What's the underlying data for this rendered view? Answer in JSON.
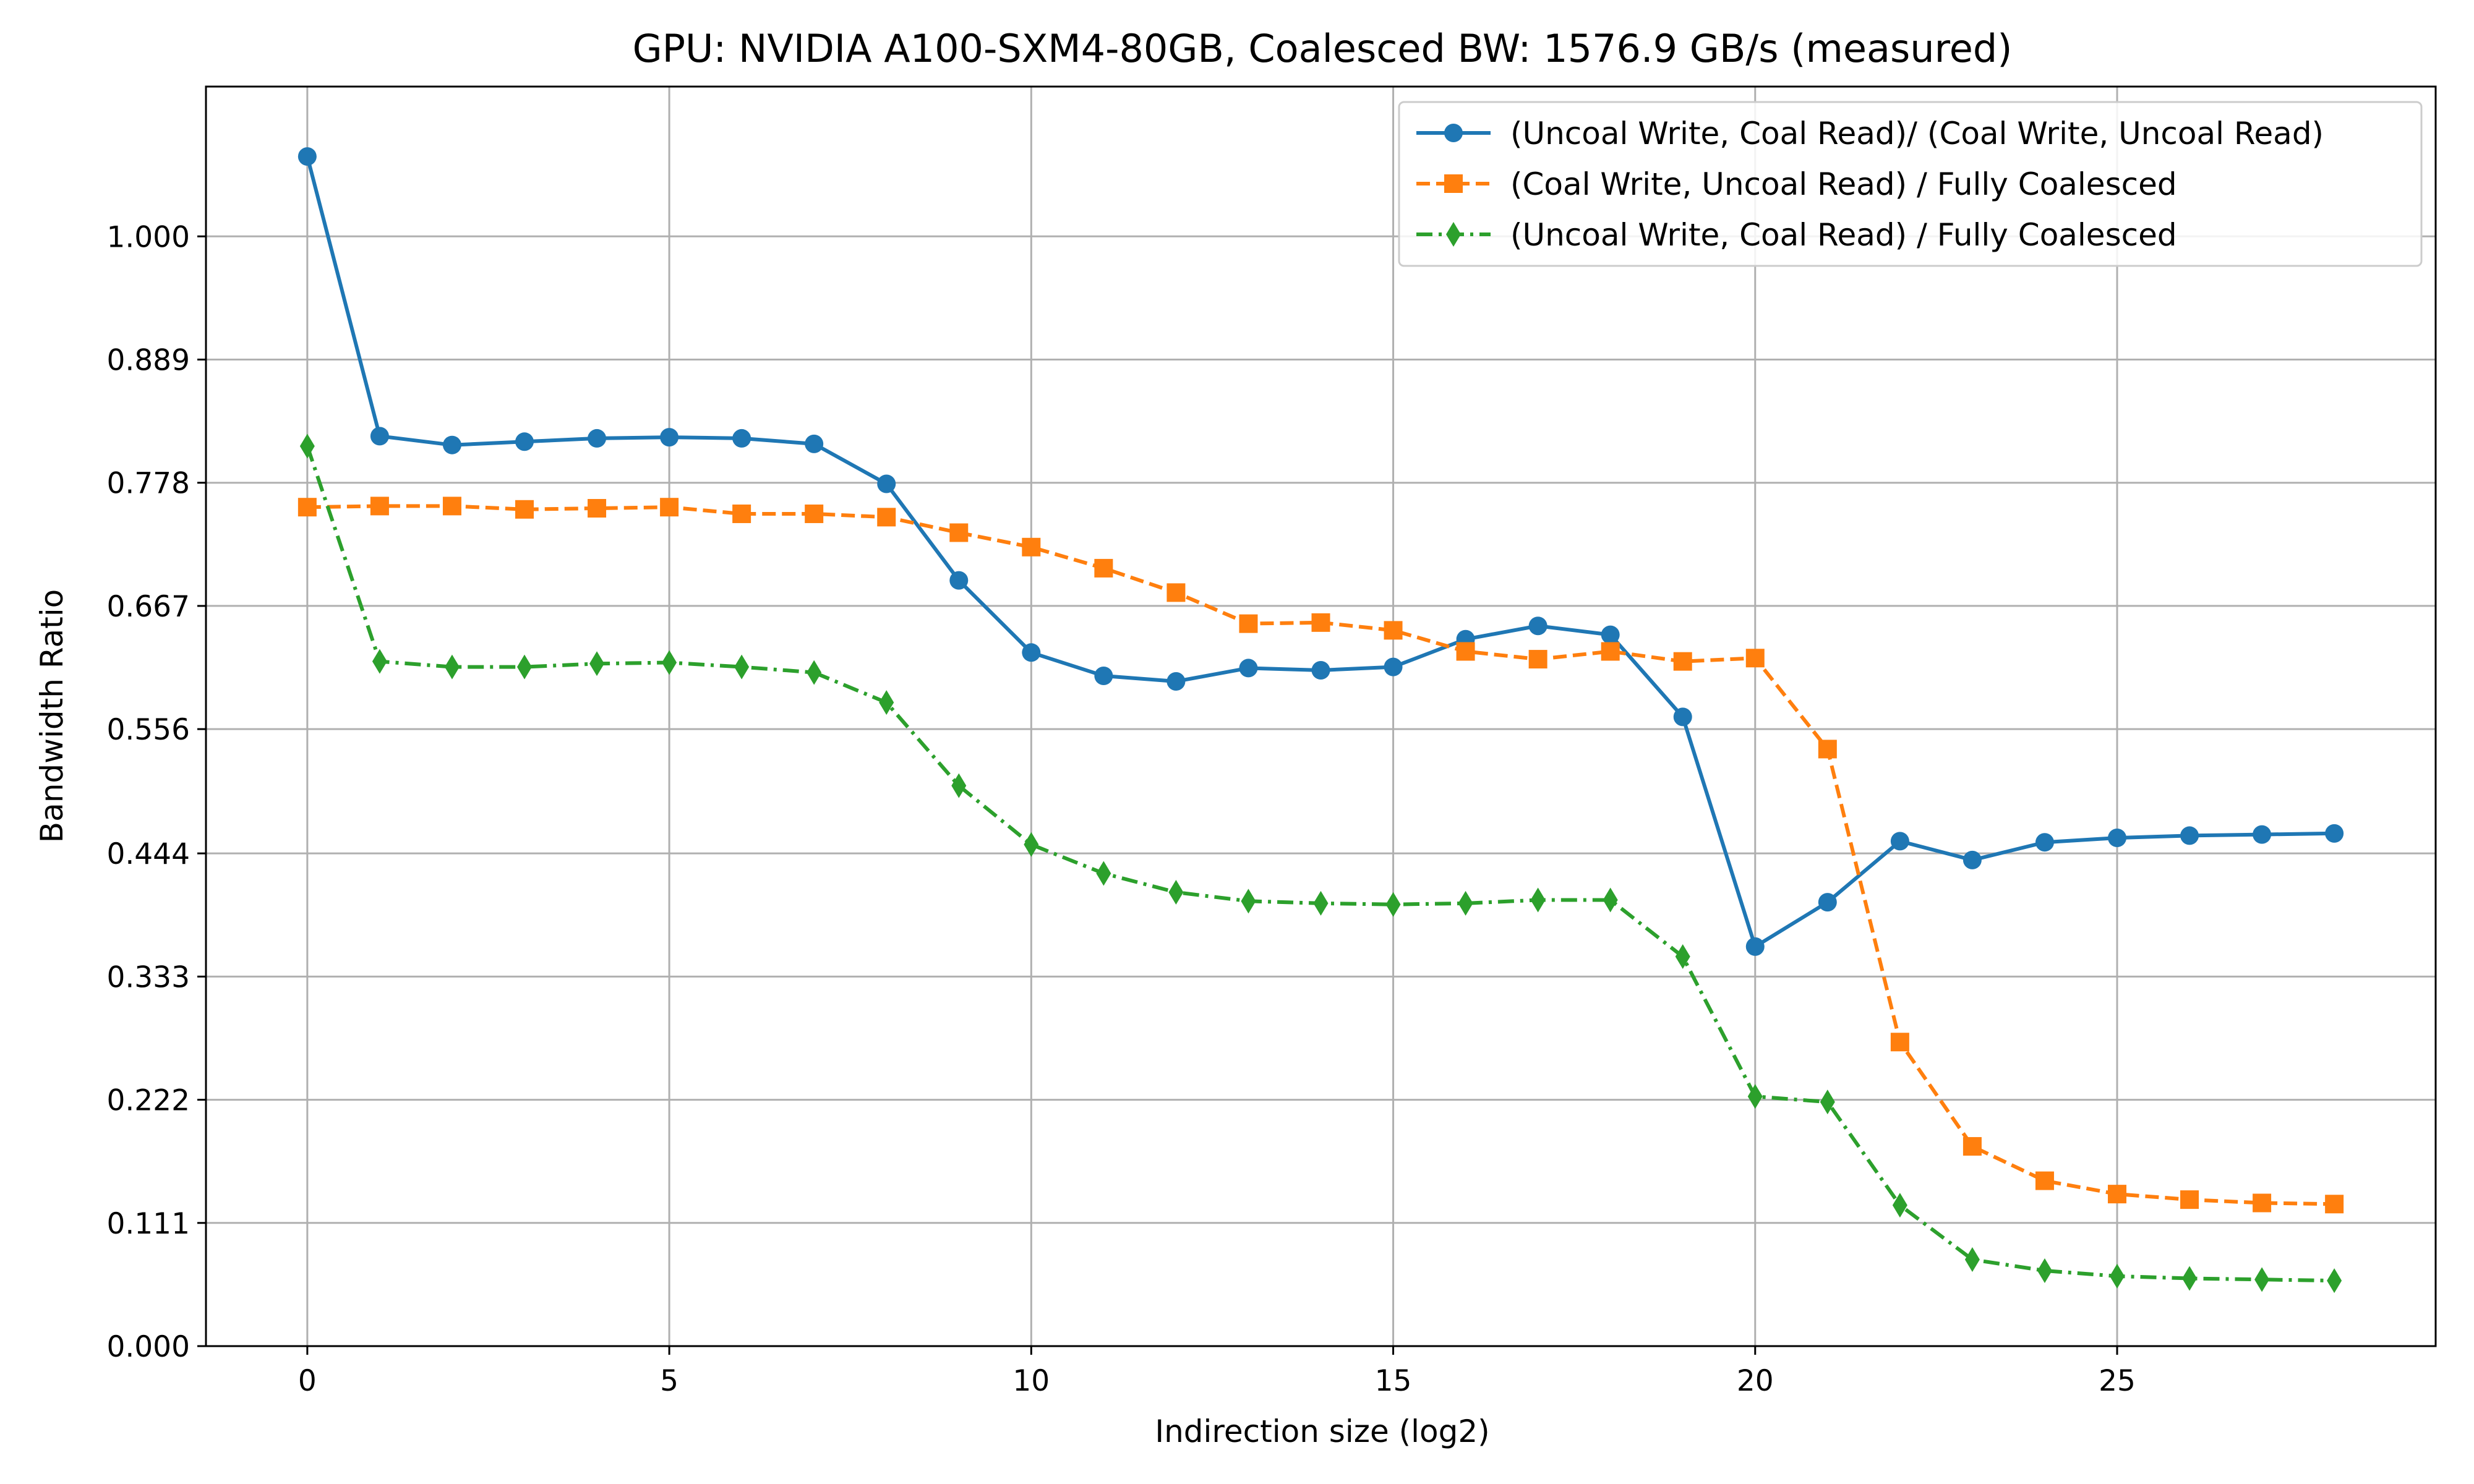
{
  "chart_data": {
    "type": "line",
    "title": "GPU: NVIDIA A100-SXM4-80GB, Coalesced BW: 1576.9 GB/s (measured)",
    "xlabel": "Indirection size (log2)",
    "ylabel": "Bandwidth Ratio",
    "xlim": [
      -1.4,
      29.4
    ],
    "ylim": [
      0,
      1.135
    ],
    "xticks": [
      0,
      5,
      10,
      15,
      20,
      25
    ],
    "xtick_labels": [
      "0",
      "5",
      "10",
      "15",
      "20",
      "25"
    ],
    "yticks": [
      0.0,
      0.111,
      0.222,
      0.333,
      0.444,
      0.556,
      0.667,
      0.778,
      0.889,
      1.0
    ],
    "ytick_labels": [
      "0.000",
      "0.111",
      "0.222",
      "0.333",
      "0.444",
      "0.556",
      "0.667",
      "0.778",
      "0.889",
      "1.000"
    ],
    "grid": true,
    "legend_position": "top-right",
    "x": [
      0,
      1,
      2,
      3,
      4,
      5,
      6,
      7,
      8,
      9,
      10,
      11,
      12,
      13,
      14,
      15,
      16,
      17,
      18,
      19,
      20,
      21,
      22,
      23,
      24,
      25,
      26,
      27,
      28
    ],
    "series": [
      {
        "name": "(Uncoal Write, Coal Read)/ (Coal Write, Uncoal Read)",
        "color": "#1f77b4",
        "line_style": "solid",
        "marker": "circle",
        "values": [
          1.072,
          0.82,
          0.812,
          0.815,
          0.818,
          0.819,
          0.818,
          0.813,
          0.777,
          0.69,
          0.625,
          0.604,
          0.599,
          0.611,
          0.609,
          0.612,
          0.637,
          0.649,
          0.641,
          0.567,
          0.36,
          0.4,
          0.455,
          0.438,
          0.454,
          0.458,
          0.46,
          0.461,
          0.462
        ]
      },
      {
        "name": "(Coal Write, Uncoal Read) / Fully Coalesced",
        "color": "#ff7f0e",
        "line_style": "dashed",
        "marker": "square",
        "values": [
          0.756,
          0.757,
          0.757,
          0.754,
          0.755,
          0.756,
          0.75,
          0.75,
          0.747,
          0.733,
          0.72,
          0.701,
          0.679,
          0.651,
          0.652,
          0.645,
          0.626,
          0.619,
          0.626,
          0.617,
          0.62,
          0.538,
          0.274,
          0.18,
          0.149,
          0.137,
          0.132,
          0.129,
          0.128
        ]
      },
      {
        "name": "(Uncoal Write, Coal Read) / Fully Coalesced",
        "color": "#2ca02c",
        "line_style": "dashdot",
        "marker": "thin_diamond",
        "values": [
          0.811,
          0.617,
          0.612,
          0.612,
          0.615,
          0.616,
          0.612,
          0.607,
          0.58,
          0.505,
          0.452,
          0.426,
          0.409,
          0.401,
          0.399,
          0.398,
          0.399,
          0.402,
          0.402,
          0.351,
          0.225,
          0.22,
          0.127,
          0.078,
          0.068,
          0.063,
          0.061,
          0.06,
          0.059
        ]
      }
    ]
  }
}
